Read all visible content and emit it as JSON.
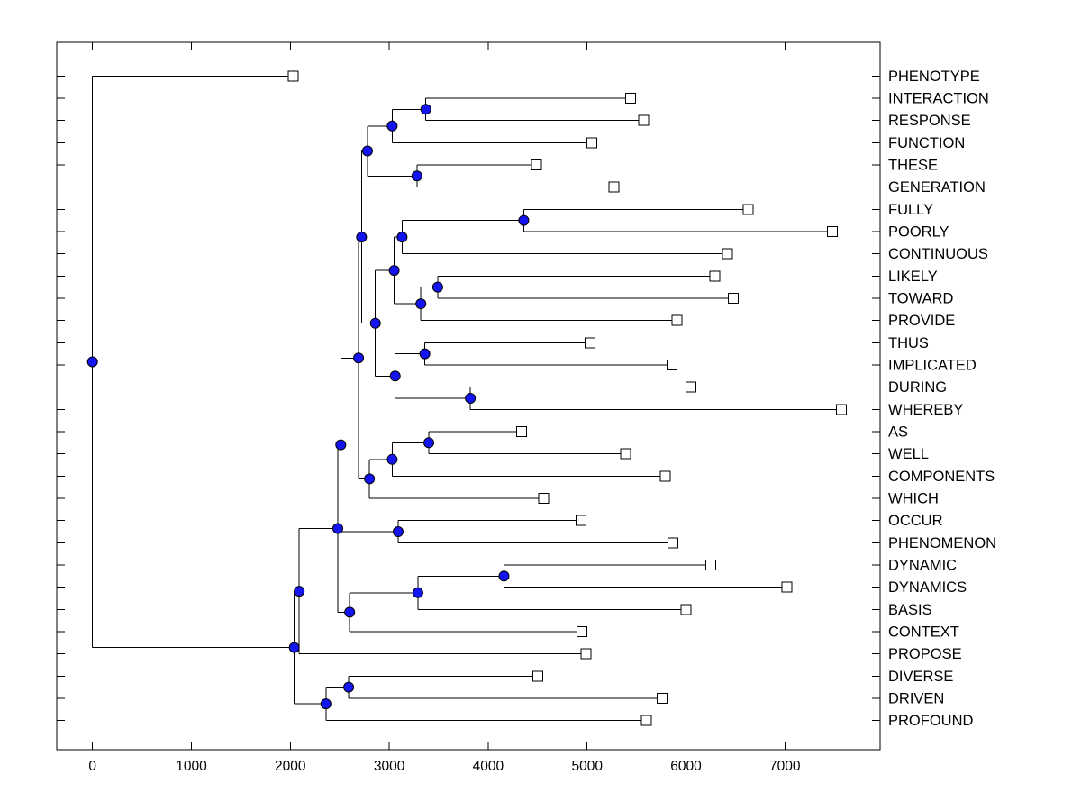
{
  "figure": {
    "background": "#ffffff",
    "frame_color": "#000000",
    "branch_color": "#000000",
    "node_marker_fill": "#1414f0",
    "node_marker_stroke": "#000000",
    "leaf_marker_fill": "#ffffff",
    "leaf_marker_stroke": "#000000"
  },
  "chart_data": {
    "type": "dendrogram",
    "orientation": "horizontal-left-root",
    "title": "",
    "xlabel": "",
    "ylabel": "",
    "x_axis": {
      "min": -400,
      "max": 7960,
      "tick_values": [
        0,
        1000,
        2000,
        3000,
        4000,
        5000,
        6000,
        7000
      ],
      "tick_labels": [
        "0",
        "1000",
        "2000",
        "3000",
        "4000",
        "5000",
        "6000",
        "7000"
      ],
      "grid": false
    },
    "leaves_top_to_bottom": [
      "PHENOTYPE",
      "INTERACTION",
      "RESPONSE",
      "FUNCTION",
      "THESE",
      "GENERATION",
      "FULLY",
      "POORLY",
      "CONTINUOUS",
      "LIKELY",
      "TOWARD",
      "PROVIDE",
      "THUS",
      "IMPLICATED",
      "DURING",
      "WHEREBY",
      "AS",
      "WELL",
      "COMPONENTS",
      "WHICH",
      "OCCUR",
      "PHENOMENON",
      "DYNAMIC",
      "DYNAMICS",
      "BASIS",
      "CONTEXT",
      "PROPOSE",
      "DIVERSE",
      "DRIVEN",
      "PROFOUND"
    ],
    "tree": {
      "d": 0,
      "children": [
        {
          "label": "PHENOTYPE",
          "d": 2030
        },
        {
          "d": 2040,
          "children": [
            {
              "d": 2090,
              "children": [
                {
                  "d": 2480,
                  "children": [
                    {
                      "d": 2510,
                      "children": [
                        {
                          "d": 2690,
                          "children": [
                            {
                              "d": 2720,
                              "children": [
                                {
                                  "d": 2780,
                                  "children": [
                                    {
                                      "d": 3030,
                                      "children": [
                                        {
                                          "d": 3370,
                                          "children": [
                                            {
                                              "label": "INTERACTION",
                                              "d": 5440
                                            },
                                            {
                                              "label": "RESPONSE",
                                              "d": 5570
                                            }
                                          ]
                                        },
                                        {
                                          "label": "FUNCTION",
                                          "d": 5050
                                        }
                                      ]
                                    },
                                    {
                                      "d": 3280,
                                      "children": [
                                        {
                                          "label": "THESE",
                                          "d": 4490
                                        },
                                        {
                                          "label": "GENERATION",
                                          "d": 5270
                                        }
                                      ]
                                    }
                                  ]
                                },
                                {
                                  "d": 2860,
                                  "children": [
                                    {
                                      "d": 3050,
                                      "children": [
                                        {
                                          "d": 3130,
                                          "children": [
                                            {
                                              "d": 4360,
                                              "children": [
                                                {
                                                  "label": "FULLY",
                                                  "d": 6630
                                                },
                                                {
                                                  "label": "POORLY",
                                                  "d": 7480
                                                }
                                              ]
                                            },
                                            {
                                              "label": "CONTINUOUS",
                                              "d": 6420
                                            }
                                          ]
                                        },
                                        {
                                          "d": 3320,
                                          "children": [
                                            {
                                              "d": 3490,
                                              "children": [
                                                {
                                                  "label": "LIKELY",
                                                  "d": 6290
                                                },
                                                {
                                                  "label": "TOWARD",
                                                  "d": 6480
                                                }
                                              ]
                                            },
                                            {
                                              "label": "PROVIDE",
                                              "d": 5910
                                            }
                                          ]
                                        }
                                      ]
                                    },
                                    {
                                      "d": 3060,
                                      "children": [
                                        {
                                          "d": 3360,
                                          "children": [
                                            {
                                              "label": "THUS",
                                              "d": 5030
                                            },
                                            {
                                              "label": "IMPLICATED",
                                              "d": 5860
                                            }
                                          ]
                                        },
                                        {
                                          "d": 3820,
                                          "children": [
                                            {
                                              "label": "DURING",
                                              "d": 6050
                                            },
                                            {
                                              "label": "WHEREBY",
                                              "d": 7570
                                            }
                                          ]
                                        }
                                      ]
                                    }
                                  ]
                                }
                              ]
                            },
                            {
                              "d": 2800,
                              "children": [
                                {
                                  "d": 3030,
                                  "children": [
                                    {
                                      "d": 3400,
                                      "children": [
                                        {
                                          "label": "AS",
                                          "d": 4340
                                        },
                                        {
                                          "label": "WELL",
                                          "d": 5390
                                        }
                                      ]
                                    },
                                    {
                                      "label": "COMPONENTS",
                                      "d": 5790
                                    }
                                  ]
                                },
                                {
                                  "label": "WHICH",
                                  "d": 4560
                                }
                              ]
                            }
                          ]
                        },
                        {
                          "d": 3090,
                          "children": [
                            {
                              "label": "OCCUR",
                              "d": 4940
                            },
                            {
                              "label": "PHENOMENON",
                              "d": 5870
                            }
                          ]
                        }
                      ]
                    },
                    {
                      "d": 2600,
                      "children": [
                        {
                          "d": 3290,
                          "children": [
                            {
                              "d": 4160,
                              "children": [
                                {
                                  "label": "DYNAMIC",
                                  "d": 6250
                                },
                                {
                                  "label": "DYNAMICS",
                                  "d": 7020
                                }
                              ]
                            },
                            {
                              "label": "BASIS",
                              "d": 6000
                            }
                          ]
                        },
                        {
                          "label": "CONTEXT",
                          "d": 4950
                        }
                      ]
                    }
                  ]
                },
                {
                  "label": "PROPOSE",
                  "d": 4990
                }
              ]
            },
            {
              "d": 2360,
              "children": [
                {
                  "d": 2590,
                  "children": [
                    {
                      "label": "DIVERSE",
                      "d": 4500
                    },
                    {
                      "label": "DRIVEN",
                      "d": 5760
                    }
                  ]
                },
                {
                  "label": "PROFOUND",
                  "d": 5600
                }
              ]
            }
          ]
        }
      ]
    }
  }
}
